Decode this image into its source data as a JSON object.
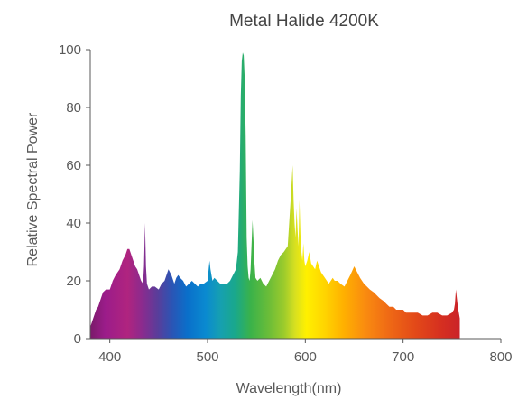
{
  "chart_data": {
    "type": "area",
    "title": "Metal Halide 4200K",
    "xlabel": "Wavelength(nm)",
    "ylabel": "Relative Spectral Power",
    "xlim": [
      380,
      800
    ],
    "ylim": [
      0,
      100
    ],
    "x_ticks": [
      "400",
      "500",
      "600",
      "700",
      "800"
    ],
    "y_ticks": [
      "0",
      "20",
      "40",
      "60",
      "80",
      "100"
    ],
    "grid": false,
    "fill": "visible-spectrum gradient",
    "x": [
      380,
      382,
      384,
      386,
      388,
      390,
      393,
      396,
      400,
      403,
      406,
      410,
      413,
      416,
      418,
      420,
      422,
      424,
      426,
      428,
      430,
      432,
      434,
      435,
      436,
      437,
      438,
      440,
      443,
      446,
      450,
      453,
      456,
      460,
      463,
      466,
      468,
      470,
      472,
      475,
      478,
      481,
      484,
      487,
      490,
      493,
      496,
      500,
      502,
      503,
      505,
      507,
      510,
      513,
      516,
      520,
      523,
      526,
      529,
      531,
      533,
      534,
      535,
      536,
      537,
      538,
      539,
      540,
      541,
      542,
      543,
      544,
      546,
      547,
      548,
      549,
      551,
      554,
      557,
      560,
      563,
      566,
      569,
      572,
      575,
      578,
      580,
      582,
      585,
      587,
      588,
      589,
      590,
      591,
      592,
      593,
      594,
      595,
      596,
      597,
      598,
      599,
      600,
      602,
      604,
      606,
      608,
      610,
      612,
      614,
      616,
      618,
      620,
      622,
      624,
      626,
      628,
      630,
      633,
      636,
      640,
      643,
      646,
      650,
      653,
      656,
      658,
      660,
      663,
      666,
      670,
      673,
      676,
      680,
      683,
      686,
      690,
      693,
      696,
      700,
      703,
      706,
      710,
      715,
      720,
      725,
      730,
      735,
      740,
      745,
      750,
      752,
      753,
      754,
      755,
      756,
      757,
      758
    ],
    "y": [
      4,
      6,
      8,
      10,
      11,
      13,
      16,
      17,
      17,
      20,
      22,
      24,
      27,
      29,
      31,
      31,
      29,
      27,
      25,
      24,
      22,
      20,
      19,
      25,
      40,
      25,
      19,
      17,
      18,
      18,
      17,
      19,
      20,
      24,
      22,
      19,
      21,
      22,
      21,
      20,
      18,
      19,
      20,
      19,
      18,
      19,
      19,
      20,
      27,
      24,
      20,
      21,
      20,
      19,
      19,
      19,
      20,
      22,
      24,
      30,
      58,
      84,
      96,
      99,
      98,
      90,
      70,
      35,
      25,
      21,
      20,
      24,
      41,
      34,
      26,
      21,
      20,
      21,
      19,
      18,
      20,
      22,
      24,
      27,
      29,
      30,
      31,
      32,
      48,
      60,
      48,
      40,
      35,
      45,
      38,
      32,
      48,
      36,
      30,
      27,
      33,
      27,
      25,
      27,
      30,
      26,
      25,
      24,
      27,
      25,
      23,
      22,
      21,
      20,
      19,
      20,
      21,
      20,
      20,
      19,
      18,
      20,
      22,
      25,
      23,
      21,
      20,
      19,
      18,
      17,
      16,
      15,
      14,
      13,
      12,
      11,
      11,
      10,
      10,
      10,
      9,
      9,
      9,
      9,
      8,
      8,
      9,
      9,
      8,
      8,
      9,
      10,
      12,
      17,
      14,
      11,
      9,
      7
    ]
  }
}
